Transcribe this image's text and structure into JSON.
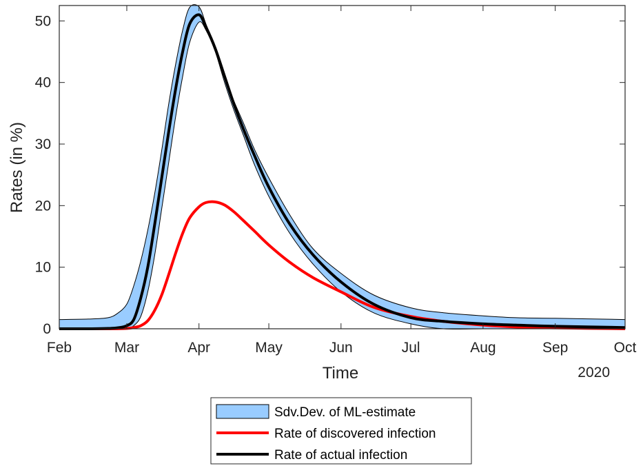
{
  "chart_data": {
    "type": "line",
    "title": "",
    "xlabel": "Time",
    "ylabel": "Rates (in %)",
    "year_label": "2020",
    "x_ticks": [
      "Feb",
      "Mar",
      "Apr",
      "May",
      "Jun",
      "Jul",
      "Aug",
      "Sep",
      "Oct"
    ],
    "x_range": [
      "2020-02-01",
      "2020-10-01"
    ],
    "y_ticks": [
      0,
      10,
      20,
      30,
      40,
      50
    ],
    "ylim": [
      0,
      52.5
    ],
    "grid": false,
    "legend_position": "bottom-center outside",
    "x": [
      "2020-02-01",
      "2020-02-15",
      "2020-02-22",
      "2020-02-26",
      "2020-03-01",
      "2020-03-04",
      "2020-03-07",
      "2020-03-10",
      "2020-03-13",
      "2020-03-16",
      "2020-03-19",
      "2020-03-22",
      "2020-03-25",
      "2020-03-28",
      "2020-04-01",
      "2020-04-04",
      "2020-04-08",
      "2020-04-12",
      "2020-04-16",
      "2020-04-20",
      "2020-04-25",
      "2020-05-01",
      "2020-05-10",
      "2020-05-20",
      "2020-06-01",
      "2020-06-15",
      "2020-07-01",
      "2020-07-15",
      "2020-08-01",
      "2020-08-15",
      "2020-09-01",
      "2020-10-01"
    ],
    "series": [
      {
        "name": "Sdv.Dev. of ML-estimate",
        "type": "band",
        "color": "#99ccff",
        "edge_color": "#000000",
        "upper": [
          1.5,
          1.6,
          1.8,
          2.5,
          4,
          7,
          11,
          16,
          22,
          29,
          36.5,
          43,
          48.5,
          52.2,
          52.3,
          49.5,
          45.5,
          41,
          37,
          33.5,
          29,
          24.5,
          18.5,
          13,
          9,
          5.5,
          3.4,
          2.6,
          2.1,
          1.8,
          1.7,
          1.5
        ],
        "lower": [
          0,
          0,
          0,
          0,
          0,
          0.5,
          2,
          6,
          12,
          19.5,
          27,
          34.5,
          41,
          46.5,
          49.8,
          48.5,
          45,
          40,
          35.5,
          31.5,
          26.5,
          21.5,
          15.5,
          10.5,
          6,
          2.6,
          0.8,
          0,
          0,
          0,
          0,
          0
        ]
      },
      {
        "name": "Rate of discovered infection",
        "color": "#ff0000",
        "values": [
          0,
          0,
          0,
          0,
          0.05,
          0.2,
          0.5,
          1.3,
          3,
          5.5,
          8.8,
          12.3,
          15.5,
          18,
          19.8,
          20.5,
          20.6,
          20.1,
          19,
          17.6,
          15.8,
          13.6,
          10.8,
          8.3,
          6,
          3.5,
          2,
          1.2,
          0.6,
          0.3,
          0.15,
          0
        ]
      },
      {
        "name": "Rate of actual infection",
        "color": "#000000",
        "values": [
          0,
          0,
          0.05,
          0.15,
          0.5,
          1.5,
          5,
          10,
          17,
          24.5,
          32,
          39,
          45,
          49.5,
          51,
          49,
          45.5,
          41,
          36.5,
          32.5,
          28,
          23,
          17,
          12,
          7.6,
          4,
          1.8,
          1.2,
          0.8,
          0.6,
          0.4,
          0.2
        ]
      }
    ]
  }
}
